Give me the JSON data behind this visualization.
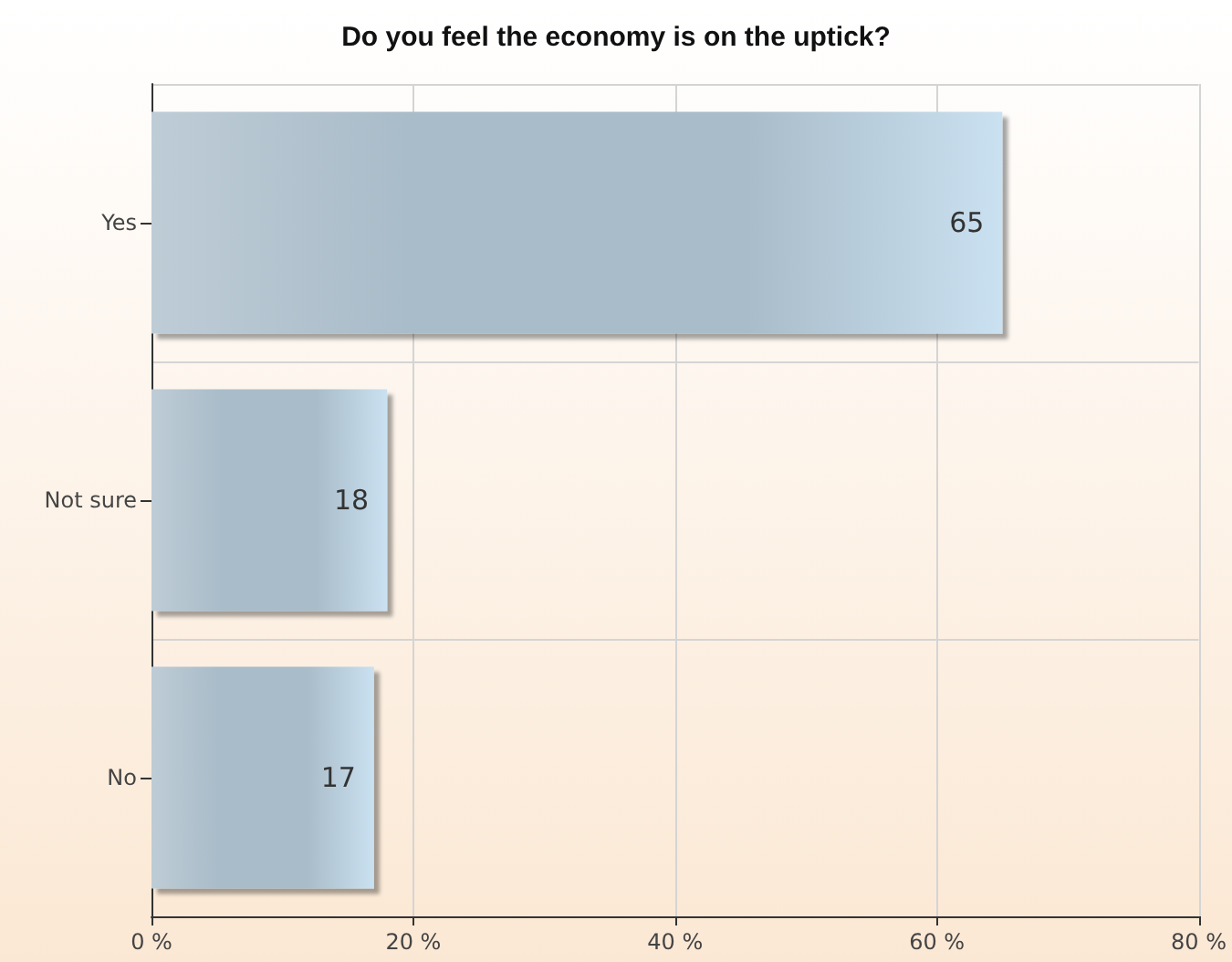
{
  "chart_data": {
    "type": "bar",
    "orientation": "horizontal",
    "title": "Do you feel the economy is on the uptick?",
    "categories": [
      "Yes",
      "Not sure",
      "No"
    ],
    "values": [
      65,
      18,
      17
    ],
    "color": "#a9bcc9",
    "data_labels": true,
    "xlim": [
      0,
      80
    ],
    "xticks": [
      {
        "value": 0,
        "label": "0 %"
      },
      {
        "value": 20,
        "label": "20 %"
      },
      {
        "value": 40,
        "label": "40 %"
      },
      {
        "value": 60,
        "label": "60 %"
      },
      {
        "value": 80,
        "label": "80 %"
      }
    ],
    "grid": true
  }
}
